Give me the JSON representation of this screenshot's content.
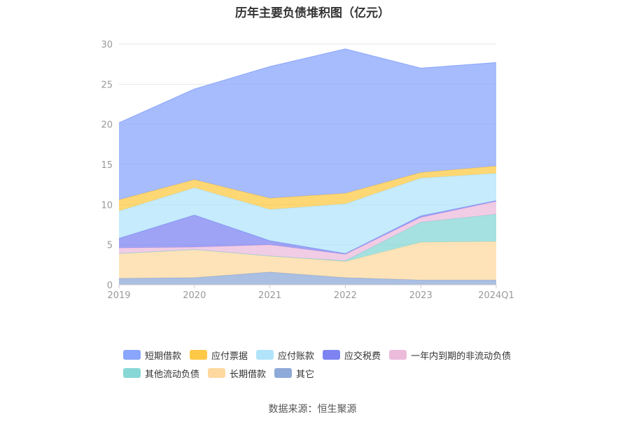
{
  "title": "历年主要负债堆积图（亿元）",
  "source": "数据来源：恒生聚源",
  "chart_data": {
    "type": "area",
    "stacked": true,
    "categories": [
      "2019",
      "2020",
      "2021",
      "2022",
      "2023",
      "2024Q1"
    ],
    "ylim": [
      0,
      30
    ],
    "yticks": [
      "0",
      "5",
      "10",
      "15",
      "20",
      "25",
      "30"
    ],
    "grid": true,
    "legend_position": "bottom",
    "series": [
      {
        "name": "其它",
        "color": "#8eaad8",
        "values": [
          0.8,
          0.9,
          1.6,
          0.9,
          0.6,
          0.6
        ]
      },
      {
        "name": "长期借款",
        "color": "#fdd9a0",
        "values": [
          3.1,
          3.5,
          2.0,
          2.0,
          4.7,
          4.8
        ]
      },
      {
        "name": "其他流动负债",
        "color": "#87d7d6",
        "values": [
          0.0,
          0.0,
          0.0,
          0.1,
          2.5,
          3.4
        ]
      },
      {
        "name": "一年内到期的非流动负债",
        "color": "#ecbbdc",
        "values": [
          0.7,
          0.3,
          1.4,
          0.8,
          0.6,
          1.6
        ]
      },
      {
        "name": "应交税费",
        "color": "#7d84f1",
        "values": [
          1.2,
          4.0,
          0.5,
          0.1,
          0.2,
          0.1
        ]
      },
      {
        "name": "应付账款",
        "color": "#b1e4fb",
        "values": [
          3.4,
          3.4,
          3.9,
          6.2,
          4.7,
          3.4
        ]
      },
      {
        "name": "应付票据",
        "color": "#fec947",
        "values": [
          1.4,
          1.0,
          1.4,
          1.3,
          0.7,
          0.9
        ]
      },
      {
        "name": "短期借款",
        "color": "#8aa6fc",
        "values": [
          9.6,
          11.3,
          16.4,
          18.0,
          13.0,
          12.9
        ]
      }
    ]
  },
  "legend": {
    "rows": [
      [
        {
          "label": "短期借款",
          "color": "#8aa6fc"
        },
        {
          "label": "应付票据",
          "color": "#fec947"
        },
        {
          "label": "应付账款",
          "color": "#b1e4fb"
        },
        {
          "label": "应交税费",
          "color": "#7d84f1"
        },
        {
          "label": "一年内到期的非流动负债",
          "color": "#ecbbdc"
        }
      ],
      [
        {
          "label": "其他流动负债",
          "color": "#87d7d6"
        },
        {
          "label": "长期借款",
          "color": "#fdd9a0"
        },
        {
          "label": "其它",
          "color": "#8eaad8"
        }
      ]
    ]
  }
}
